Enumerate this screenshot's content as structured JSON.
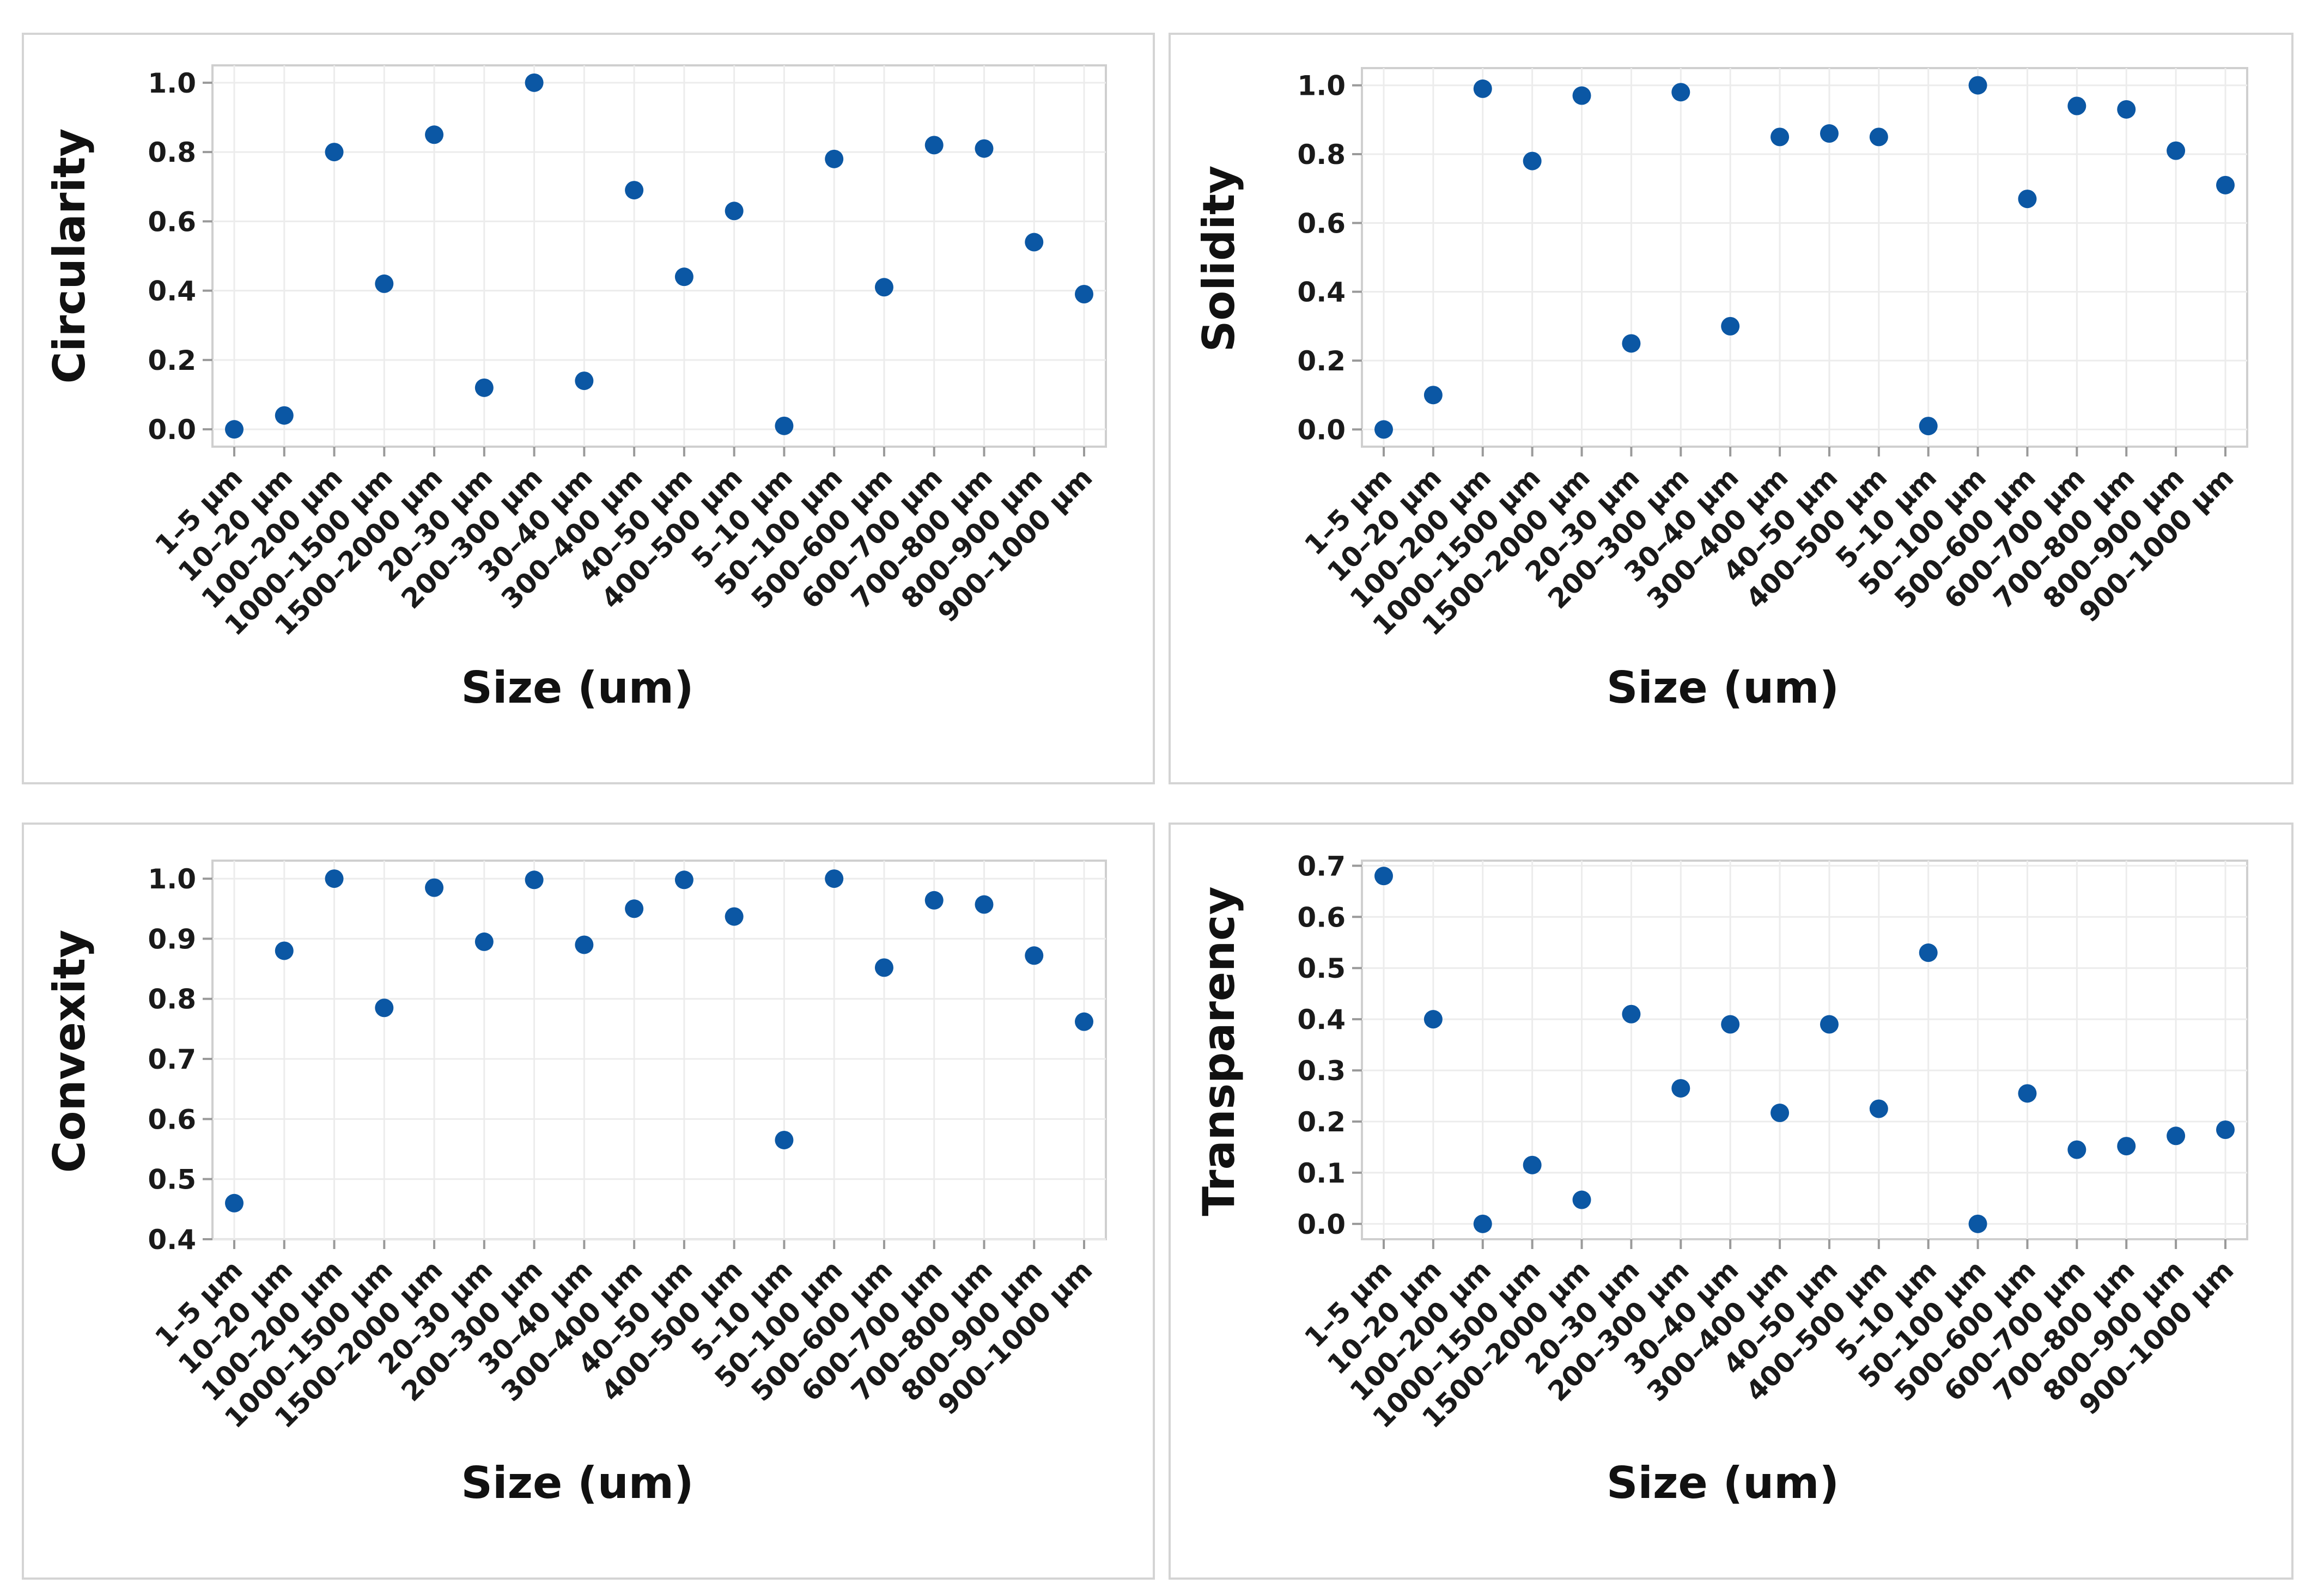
{
  "colors": {
    "point": "#0b57a4",
    "grid": "#ececec",
    "frame": "#cfcfcf",
    "text": "#1a1a1a"
  },
  "chart_data": [
    {
      "type": "scatter",
      "title": "",
      "xlabel": "Size (um)",
      "ylabel": "Circularity",
      "categories": [
        "1–5 μm",
        "10–20 μm",
        "100–200 μm",
        "1000–1500 μm",
        "1500–2000 μm",
        "20–30 μm",
        "200–300 μm",
        "30–40 μm",
        "300–400 μm",
        "40–50 μm",
        "400–500 μm",
        "5–10 μm",
        "50–100 μm",
        "500–600 μm",
        "600–700 μm",
        "700–800 μm",
        "800–900 μm",
        "900–1000 μm"
      ],
      "values": [
        0.0,
        0.04,
        0.8,
        0.42,
        0.85,
        0.12,
        1.0,
        0.14,
        0.69,
        0.44,
        0.63,
        0.01,
        0.78,
        0.41,
        0.82,
        0.81,
        0.54,
        0.39
      ],
      "ylim": [
        -0.05,
        1.05
      ],
      "yticks": [
        "0.0",
        "0.2",
        "0.4",
        "0.6",
        "0.8",
        "1.0"
      ],
      "ytick_values": [
        0.0,
        0.2,
        0.4,
        0.6,
        0.8,
        1.0
      ],
      "grid": true
    },
    {
      "type": "scatter",
      "title": "",
      "xlabel": "Size (um)",
      "ylabel": "Solidity",
      "categories": [
        "1–5 μm",
        "10–20 μm",
        "100–200 μm",
        "1000–1500 μm",
        "1500–2000 μm",
        "20–30 μm",
        "200–300 μm",
        "30–40 μm",
        "300–400 μm",
        "40–50 μm",
        "400–500 μm",
        "5–10 μm",
        "50–100 μm",
        "500–600 μm",
        "600–700 μm",
        "700–800 μm",
        "800–900 μm",
        "900–1000 μm"
      ],
      "values": [
        0.0,
        0.1,
        0.99,
        0.78,
        0.97,
        0.25,
        0.98,
        0.3,
        0.85,
        0.86,
        0.85,
        0.01,
        1.0,
        0.67,
        0.94,
        0.93,
        0.81,
        0.71
      ],
      "ylim": [
        -0.05,
        1.05
      ],
      "yticks": [
        "0.0",
        "0.2",
        "0.4",
        "0.6",
        "0.8",
        "1.0"
      ],
      "ytick_values": [
        0.0,
        0.2,
        0.4,
        0.6,
        0.8,
        1.0
      ],
      "grid": true
    },
    {
      "type": "scatter",
      "title": "",
      "xlabel": "Size (um)",
      "ylabel": "Convexity",
      "categories": [
        "1–5 μm",
        "10–20 μm",
        "100–200 μm",
        "1000–1500 μm",
        "1500–2000 μm",
        "20–30 μm",
        "200–300 μm",
        "30–40 μm",
        "300–400 μm",
        "40–50 μm",
        "400–500 μm",
        "5–10 μm",
        "50–100 μm",
        "500–600 μm",
        "600–700 μm",
        "700–800 μm",
        "800–900 μm",
        "900–1000 μm"
      ],
      "values": [
        0.46,
        0.88,
        1.0,
        0.785,
        0.985,
        0.895,
        0.998,
        0.89,
        0.95,
        0.998,
        0.937,
        0.565,
        1.0,
        0.852,
        0.964,
        0.957,
        0.872,
        0.762
      ],
      "ylim": [
        0.4,
        1.03
      ],
      "yticks": [
        "0.4",
        "0.5",
        "0.6",
        "0.7",
        "0.8",
        "0.9",
        "1.0"
      ],
      "ytick_values": [
        0.4,
        0.5,
        0.6,
        0.7,
        0.8,
        0.9,
        1.0
      ],
      "grid": true
    },
    {
      "type": "scatter",
      "title": "",
      "xlabel": "Size (um)",
      "ylabel": "Transparency",
      "categories": [
        "1–5 μm",
        "10–20 μm",
        "100–200 μm",
        "1000–1500 μm",
        "1500–2000 μm",
        "20–30 μm",
        "200–300 μm",
        "30–40 μm",
        "300–400 μm",
        "40–50 μm",
        "400–500 μm",
        "5–10 μm",
        "50–100 μm",
        "500–600 μm",
        "600–700 μm",
        "700–800 μm",
        "800–900 μm",
        "900–1000 μm"
      ],
      "values": [
        0.68,
        0.4,
        0.0,
        0.115,
        0.047,
        0.41,
        0.265,
        0.39,
        0.217,
        0.39,
        0.225,
        0.53,
        0.0,
        0.255,
        0.145,
        0.152,
        0.172,
        0.184
      ],
      "ylim": [
        -0.03,
        0.71
      ],
      "yticks": [
        "0.0",
        "0.1",
        "0.2",
        "0.3",
        "0.4",
        "0.5",
        "0.6",
        "0.7"
      ],
      "ytick_values": [
        0.0,
        0.1,
        0.2,
        0.3,
        0.4,
        0.5,
        0.6,
        0.7
      ],
      "grid": true
    }
  ]
}
